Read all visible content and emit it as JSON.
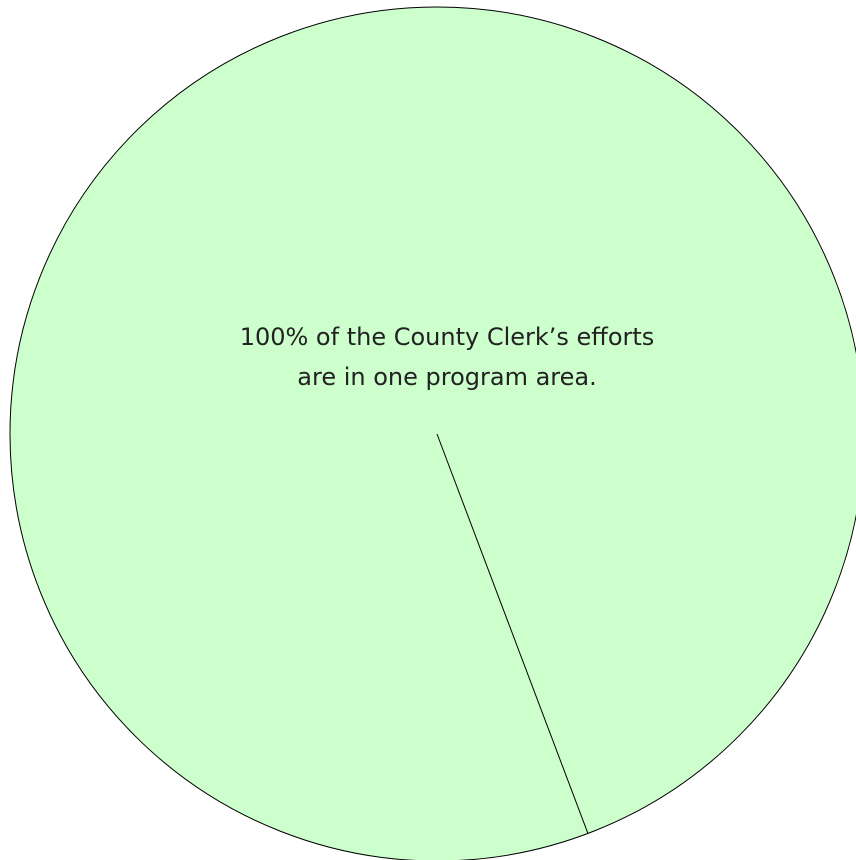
{
  "chart_data": {
    "type": "pie",
    "categories": [
      ""
    ],
    "values": [
      100
    ],
    "unit": "%",
    "colors": [
      "#ccffcc"
    ],
    "edge_color": "#000000",
    "annotation": {
      "line1": "100% of the County Clerk’s efforts",
      "line2": "are in one program area."
    }
  }
}
